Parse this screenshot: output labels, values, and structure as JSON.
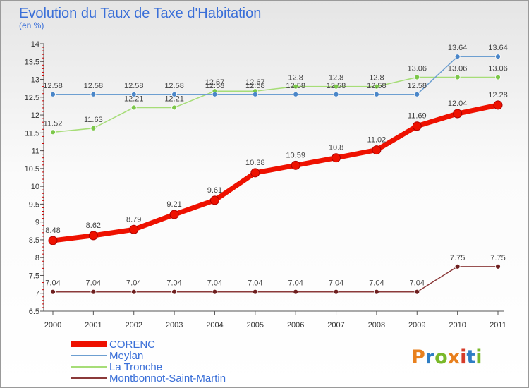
{
  "title": "Evolution du Taux de Taxe d'Habitation",
  "subtitle": "(en %)",
  "logo": {
    "text": "Proxiti",
    "letter_colors": [
      "#e8801e",
      "#2e7dc4",
      "#79b829",
      "#e8801e",
      "#d63c2a",
      "#2e7dc4",
      "#79b829"
    ]
  },
  "chart_data": {
    "type": "line",
    "x": [
      "2000",
      "2001",
      "2002",
      "2003",
      "2004",
      "2005",
      "2006",
      "2007",
      "2008",
      "2009",
      "2010",
      "2011"
    ],
    "ylim": [
      6.5,
      14
    ],
    "yticks": [
      6.5,
      7,
      7.5,
      8,
      8.5,
      9,
      9.5,
      10,
      10.5,
      11,
      11.5,
      12,
      12.5,
      13,
      13.5,
      14
    ],
    "ytick_labels": [
      "6.5",
      "7",
      "7.5",
      "8",
      "8.5",
      "9",
      "9.5",
      "10",
      "10.5",
      "11",
      "11.5",
      "12",
      "12.5",
      "13",
      "13.5",
      "14"
    ],
    "xlabel": "",
    "ylabel": "",
    "grid": false,
    "legend_position": "bottom-left",
    "series": [
      {
        "name": "CORENC",
        "color": "#ee1100",
        "marker_color": "#ee1100",
        "values": [
          8.48,
          8.62,
          8.79,
          9.21,
          9.61,
          10.38,
          10.59,
          10.8,
          11.02,
          11.69,
          12.04,
          12.28
        ],
        "labels": [
          "8.48",
          "8.62",
          "8.79",
          "9.21",
          "9.61",
          "10.38",
          "10.59",
          "10.8",
          "11.02",
          "11.69",
          "12.04",
          "12.28"
        ]
      },
      {
        "name": "Meylan",
        "color": "#6d9fd1",
        "marker_color": "#4a86c8",
        "values": [
          12.58,
          12.58,
          12.58,
          12.58,
          12.58,
          12.58,
          12.58,
          12.58,
          12.58,
          12.58,
          13.64,
          13.64
        ],
        "labels": [
          "12.58",
          "12.58",
          "12.58",
          "12.58",
          "12.58",
          "12.58",
          "12.58",
          "12.58",
          "12.58",
          "12.58",
          "13.64",
          "13.64"
        ]
      },
      {
        "name": "La Tronche",
        "color": "#a6dd77",
        "marker_color": "#7cc74a",
        "values": [
          11.52,
          11.63,
          12.21,
          12.21,
          12.67,
          12.67,
          12.8,
          12.8,
          12.8,
          13.06,
          13.06,
          13.06
        ],
        "labels": [
          "11.52",
          "11.63",
          "12.21",
          "12.21",
          "12.67",
          "12.67",
          "12.8",
          "12.8",
          "12.8",
          "13.06",
          "13.06",
          "13.06"
        ]
      },
      {
        "name": "Montbonnot-Saint-Martin",
        "color": "#8b3a3a",
        "marker_color": "#6e1f1f",
        "values": [
          7.04,
          7.04,
          7.04,
          7.04,
          7.04,
          7.04,
          7.04,
          7.04,
          7.04,
          7.04,
          7.75,
          7.75
        ],
        "labels": [
          "7.04",
          "7.04",
          "7.04",
          "7.04",
          "7.04",
          "7.04",
          "7.04",
          "7.04",
          "7.04",
          "7.04",
          "7.75",
          "7.75"
        ]
      }
    ]
  }
}
